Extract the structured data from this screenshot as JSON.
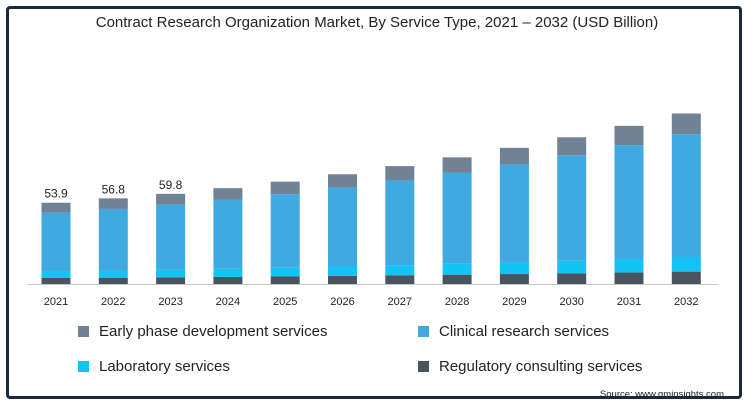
{
  "chart_data": {
    "type": "bar",
    "stacked": true,
    "title": "Contract Research Organization Market, By Service Type, 2021 – 2032 (USD Billion)",
    "source": "Source: www.gminsights.com",
    "categories": [
      "2021",
      "2022",
      "2023",
      "2024",
      "2025",
      "2026",
      "2027",
      "2028",
      "2029",
      "2030",
      "2031",
      "2032"
    ],
    "totals_labels": [
      "53.9",
      "56.8",
      "59.8"
    ],
    "series": [
      {
        "name": "Regulatory consulting services",
        "color": "#4a545e",
        "values": [
          4.0,
          4.2,
          4.4,
          4.7,
          5.0,
          5.4,
          5.8,
          6.2,
          6.6,
          7.1,
          7.6,
          8.2
        ]
      },
      {
        "name": "Laboratory services",
        "color": "#12c3f4",
        "values": [
          4.6,
          4.8,
          5.1,
          5.4,
          5.8,
          6.2,
          6.7,
          7.2,
          7.7,
          8.3,
          9.0,
          9.7
        ]
      },
      {
        "name": "Clinical research services",
        "color": "#3fa9e0",
        "values": [
          38.6,
          40.8,
          43.0,
          45.7,
          48.8,
          52.3,
          56.1,
          60.3,
          64.9,
          70.0,
          75.5,
          81.4
        ]
      },
      {
        "name": "Early phase development services",
        "color": "#6f8296",
        "values": [
          6.7,
          7.0,
          7.3,
          7.8,
          8.3,
          8.9,
          9.6,
          10.3,
          11.1,
          11.9,
          12.8,
          13.8
        ]
      }
    ],
    "legend_order": [
      "Early phase development services",
      "Clinical research services",
      "Laboratory services",
      "Regulatory consulting services"
    ],
    "ylim": [
      0,
      130
    ],
    "xlabel": "",
    "ylabel": "",
    "grid": false,
    "legend_placement": "bottom"
  }
}
